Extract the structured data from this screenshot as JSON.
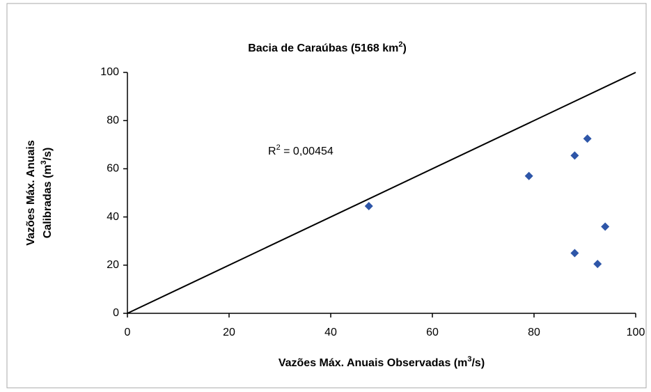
{
  "chart_data": {
    "type": "scatter",
    "title": [
      "Bacia de Caraúbas (5168 km",
      "2",
      ")"
    ],
    "xlabel": [
      "Vazões Máx. Anuais Observadas (m",
      "3",
      "/s)"
    ],
    "ylabel": [
      [
        "Vazões Máx. Anuais"
      ],
      [
        "Calibradas (m",
        "3",
        "/s)"
      ]
    ],
    "annotation": [
      "R",
      "2",
      " = 0,00454"
    ],
    "x": [
      47.5,
      79,
      88,
      90.5,
      94,
      88,
      92.5
    ],
    "values": [
      44.5,
      57,
      65.5,
      72.5,
      36,
      25,
      20.5
    ],
    "color": "#2e56a8",
    "reference_line": {
      "x": [
        0,
        100
      ],
      "y": [
        0,
        100
      ],
      "color": "#000000"
    },
    "xlim": [
      0,
      100
    ],
    "xticks": [
      0,
      20,
      40,
      60,
      80,
      100
    ],
    "ylim": [
      0,
      100
    ],
    "yticks": [
      0,
      20,
      40,
      60,
      80,
      100
    ]
  }
}
